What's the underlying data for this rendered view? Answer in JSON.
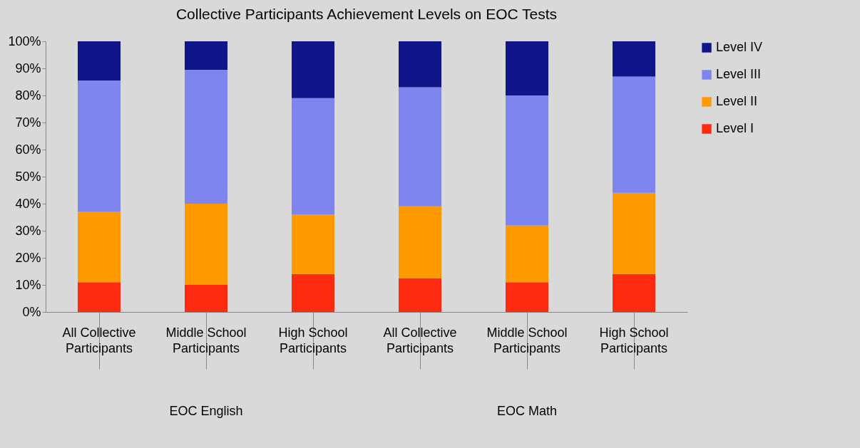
{
  "chart_data": {
    "type": "bar",
    "title": "Collective Participants Achievement Levels on EOC Tests",
    "categories": [
      "All Collective Participants",
      "Middle School Participants",
      "High School Participants",
      "All Collective Participants",
      "Middle School Participants",
      "High School Participants"
    ],
    "stacked": true,
    "series": [
      {
        "name": "Level I",
        "color": "#ff2a0f",
        "values": [
          11,
          10,
          14,
          12.5,
          11,
          14
        ]
      },
      {
        "name": "Level II",
        "color": "#ff9900",
        "values": [
          26,
          30,
          22,
          26.5,
          21,
          30
        ]
      },
      {
        "name": "Level III",
        "color": "#7f85ee",
        "values": [
          48.5,
          49.5,
          43,
          44,
          48,
          43
        ]
      },
      {
        "name": "Level IV",
        "color": "#10168a",
        "values": [
          14.5,
          10.5,
          21,
          17,
          20,
          13
        ]
      }
    ],
    "ylim": [
      0,
      100
    ],
    "yticks": [
      {
        "value": 0,
        "label": "0%"
      },
      {
        "value": 10,
        "label": "10%"
      },
      {
        "value": 20,
        "label": "20%"
      },
      {
        "value": 30,
        "label": "30%"
      },
      {
        "value": 40,
        "label": "40%"
      },
      {
        "value": 50,
        "label": "50%"
      },
      {
        "value": 60,
        "label": "60%"
      },
      {
        "value": 70,
        "label": "70%"
      },
      {
        "value": 80,
        "label": "80%"
      },
      {
        "value": 90,
        "label": "90%"
      },
      {
        "value": 100,
        "label": "100%"
      }
    ],
    "annotations": [
      "EOC English",
      "EOC Math"
    ],
    "legend": "right"
  }
}
